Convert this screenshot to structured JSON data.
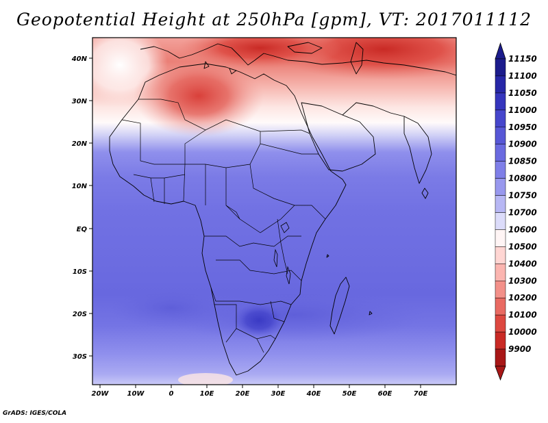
{
  "title": "Geopotential Height at 250hPa [gpm], VT: 2017011112",
  "credit": "GrADS: IGES/COLA",
  "map": {
    "variable": "Geopotential Height",
    "level": "250hPa",
    "units": "gpm",
    "valid_time": "2017011112",
    "lat_labels": [
      "40N",
      "30N",
      "20N",
      "10N",
      "EQ",
      "10S",
      "20S",
      "30S"
    ],
    "lon_labels": [
      "20W",
      "10W",
      "0",
      "10E",
      "20E",
      "30E",
      "40E",
      "50E",
      "60E",
      "70E"
    ]
  },
  "colorbar": {
    "labels": [
      "11150",
      "11100",
      "11050",
      "11000",
      "10950",
      "10900",
      "10850",
      "10800",
      "10750",
      "10700",
      "10600",
      "10500",
      "10400",
      "10300",
      "10200",
      "10100",
      "10000",
      "9900"
    ],
    "colors": [
      "#1c1c8c",
      "#2727a7",
      "#3535bd",
      "#4646cc",
      "#5757d6",
      "#6a6ae0",
      "#7f7fe8",
      "#9898ee",
      "#b7b7f4",
      "#dcdcfa",
      "#fff5f5",
      "#ffd6d3",
      "#fbb5b0",
      "#f39089",
      "#e96a62",
      "#dd4840",
      "#c92a25",
      "#a81717"
    ]
  }
}
